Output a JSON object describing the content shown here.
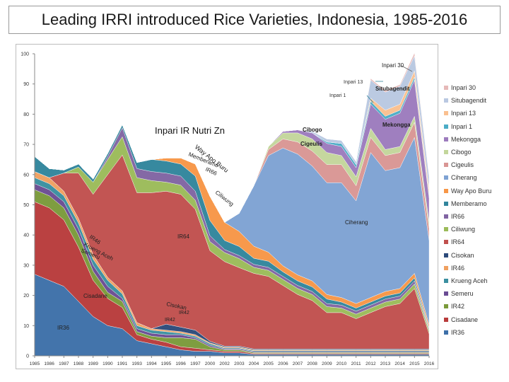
{
  "chart_data": {
    "type": "area",
    "title": "Leading IRRI introduced Rice Varieties, Indonesia, 1985-2016",
    "subtitle": "Inpari IR Nutri Zn",
    "stacked": true,
    "ylim": [
      0,
      100
    ],
    "yticks": [
      0,
      10,
      20,
      30,
      40,
      50,
      60,
      70,
      80,
      90,
      100
    ],
    "x": [
      "1985",
      "1986",
      "1987",
      "1988",
      "1989",
      "1990",
      "1991",
      "1993",
      "1994",
      "1995",
      "1996",
      "1997",
      "2000",
      "2002",
      "2003",
      "2004",
      "2005",
      "2006",
      "2007",
      "2008",
      "2009",
      "2010",
      "2011",
      "2012",
      "2013",
      "2014",
      "2015",
      "2016"
    ],
    "series": [
      {
        "name": "IR36",
        "color": "#3d6fa8",
        "values": [
          27,
          25,
          23,
          18,
          13,
          10,
          9,
          5,
          4,
          3,
          2,
          1.5,
          1.5,
          1,
          1,
          0.5,
          0.5,
          0.5,
          0.5,
          0.5,
          0.5,
          0.5,
          0.5,
          0.5,
          0.5,
          0.5,
          0.5,
          0.5
        ]
      },
      {
        "name": "Cisadane",
        "color": "#b83b3b",
        "values": [
          24,
          24,
          22,
          18,
          12,
          9,
          7,
          2,
          1.5,
          1.5,
          1,
          1,
          0.5,
          0.5,
          0.5,
          0.3,
          0.3,
          0.3,
          0.3,
          0.3,
          0.3,
          0.3,
          0.3,
          0.3,
          0.3,
          0.3,
          0.3,
          0.3
        ]
      },
      {
        "name": "IR42",
        "color": "#7a9a3a",
        "values": [
          4,
          4,
          4,
          4,
          3,
          2,
          2,
          1,
          1,
          1.5,
          3,
          3,
          1,
          0.5,
          0.5,
          0.3,
          0.3,
          0.3,
          0.3,
          0.3,
          0.3,
          0.3,
          0.3,
          0.3,
          0.3,
          0.3,
          0.3,
          0.3
        ]
      },
      {
        "name": "Semeru",
        "color": "#6a4c93",
        "values": [
          2,
          2,
          2,
          2,
          2,
          2,
          1,
          1,
          1,
          1,
          1,
          0.5,
          0.5,
          0.3,
          0.3,
          0.3,
          0.3,
          0.3,
          0.3,
          0.3,
          0.3,
          0.3,
          0.3,
          0.3,
          0.3,
          0.3,
          0.3,
          0.3
        ]
      },
      {
        "name": "Krueng Aceh",
        "color": "#3a8fa0",
        "values": [
          2,
          2,
          2,
          2,
          2,
          2,
          1.5,
          1,
          1,
          1,
          0.5,
          0.5,
          0.5,
          0.3,
          0.3,
          0.3,
          0.3,
          0.3,
          0.3,
          0.3,
          0.3,
          0.3,
          0.3,
          0.3,
          0.3,
          0.3,
          0.3,
          0.3
        ]
      },
      {
        "name": "IR46",
        "color": "#f0a060",
        "values": [
          2,
          2,
          1.5,
          1.5,
          1.5,
          1,
          1,
          1,
          0.5,
          0.5,
          0.5,
          0.5,
          0.3,
          0.3,
          0.3,
          0.3,
          0.3,
          0.3,
          0.3,
          0.3,
          0.3,
          0.3,
          0.3,
          0.3,
          0.3,
          0.3,
          0.3,
          0.3
        ]
      },
      {
        "name": "Cisokan",
        "color": "#2c4a7a",
        "values": [
          0,
          0,
          0,
          0,
          0,
          0,
          0,
          0,
          0,
          2,
          1.5,
          1.5,
          0.5,
          0.3,
          0.3,
          0.3,
          0.3,
          0.3,
          0.3,
          0.3,
          0.3,
          0.3,
          0.3,
          0.3,
          0.3,
          0.3,
          0.3,
          0.3
        ]
      },
      {
        "name": "IR64",
        "color": "#c0504d",
        "values": [
          0,
          0,
          6,
          15,
          20,
          34,
          45,
          43,
          45,
          44,
          44,
          40,
          30,
          28,
          26,
          25,
          24,
          21,
          18,
          16,
          12,
          12,
          10,
          12,
          14,
          15,
          20,
          5
        ]
      },
      {
        "name": "Ciliwung",
        "color": "#9bbb59",
        "values": [
          0,
          0,
          0,
          2,
          4,
          5,
          6,
          5,
          4,
          3,
          3,
          3,
          3,
          3,
          3,
          2,
          2,
          2,
          2,
          2,
          2,
          1.5,
          1.5,
          1.5,
          1.5,
          1.5,
          1.5,
          1
        ]
      },
      {
        "name": "IR66",
        "color": "#8064a2",
        "values": [
          0,
          0,
          0,
          0,
          0,
          1,
          3,
          3,
          3,
          3,
          3,
          3,
          2,
          1,
          1,
          1,
          1,
          1,
          1,
          1,
          1,
          1,
          1,
          1,
          1,
          1,
          1,
          0.5
        ]
      },
      {
        "name": "Memberamo",
        "color": "#31859c",
        "values": [
          5,
          3,
          1,
          1,
          1,
          1,
          1,
          2,
          4,
          4,
          4,
          5,
          5,
          3,
          3,
          2,
          2,
          1.5,
          1.5,
          1.5,
          1.5,
          1,
          1,
          1,
          1,
          1,
          1,
          0.5
        ]
      },
      {
        "name": "Way Apo Buru",
        "color": "#f79646",
        "values": [
          0,
          0,
          0,
          0,
          0,
          0,
          0,
          0,
          0,
          1,
          2,
          4,
          8,
          6,
          5,
          4,
          3,
          2,
          2,
          2,
          1.5,
          1.5,
          1.5,
          1.5,
          1.5,
          1.5,
          1.5,
          1
        ]
      },
      {
        "name": "Ciherang",
        "color": "#7ea2d3",
        "values": [
          0,
          0,
          0,
          0,
          0,
          0,
          0,
          0,
          0,
          0,
          0,
          0,
          0,
          0,
          6,
          20,
          32,
          39,
          40,
          38,
          37,
          38,
          34,
          48,
          40,
          40,
          45,
          28
        ]
      },
      {
        "name": "Cigeulis",
        "color": "#d99694",
        "values": [
          0,
          0,
          0,
          0,
          0,
          0,
          0,
          0,
          0,
          0,
          0,
          0,
          0,
          0,
          0,
          0,
          2,
          3,
          4,
          5,
          6,
          6,
          5,
          5,
          5,
          5,
          5,
          4
        ]
      },
      {
        "name": "Cibogo",
        "color": "#c3d69b",
        "values": [
          0,
          0,
          0,
          0,
          0,
          0,
          0,
          0,
          0,
          0,
          0,
          0,
          0,
          0,
          0,
          0,
          1,
          2,
          3,
          4,
          4,
          3,
          3,
          3,
          2,
          2,
          2,
          2
        ]
      },
      {
        "name": "Mekongga",
        "color": "#9c7bbd",
        "values": [
          0,
          0,
          0,
          0,
          0,
          0,
          0,
          0,
          0,
          0,
          0,
          0,
          0,
          0,
          0,
          0,
          0,
          0.5,
          1,
          2,
          3,
          3,
          3,
          8,
          10,
          11,
          12,
          8
        ]
      },
      {
        "name": "Inpari 1",
        "color": "#4bacc6",
        "values": [
          0,
          0,
          0,
          0,
          0,
          0,
          0,
          0,
          0,
          0,
          0,
          0,
          0,
          0,
          0,
          0,
          0,
          0,
          0,
          0,
          0.5,
          1,
          1,
          1,
          1,
          1,
          1,
          1
        ]
      },
      {
        "name": "Inpari 13",
        "color": "#fac090",
        "values": [
          0,
          0,
          0,
          0,
          0,
          0,
          0,
          0,
          0,
          0,
          0,
          0,
          0,
          0,
          0,
          0,
          0,
          0,
          0,
          0,
          0,
          0,
          0,
          1,
          2,
          2,
          2,
          2
        ]
      },
      {
        "name": "Situbagendit",
        "color": "#b9c8e1",
        "values": [
          0,
          0,
          0,
          0,
          0,
          0,
          0,
          0,
          0,
          0,
          0,
          0,
          0,
          0,
          0,
          0,
          0,
          0,
          0,
          0.5,
          1,
          1,
          1,
          6,
          6,
          6,
          5,
          4
        ]
      },
      {
        "name": "Inpari 30",
        "color": "#e6b9b8",
        "values": [
          0,
          0,
          0,
          0,
          0,
          0,
          0,
          0,
          0,
          0,
          0,
          0,
          0,
          0,
          0,
          0,
          0,
          0,
          0,
          0,
          0,
          0,
          0,
          0.5,
          0.5,
          0.5,
          1,
          0.5
        ]
      }
    ],
    "legend_order": [
      "Inpari 30",
      "Situbagendit",
      "Inpari 13",
      "Inpari 1",
      "Mekongga",
      "Cibogo",
      "Cigeulis",
      "Ciherang",
      "Way Apo Buru",
      "Memberamo",
      "IR66",
      "Ciliwung",
      "IR64",
      "Cisokan",
      "IR46",
      "Krueng Aceh",
      "Semeru",
      "IR42",
      "Cisadane",
      "IR36"
    ],
    "annotations": [
      {
        "text": "Inpari 30",
        "series": "Inpari 30"
      },
      {
        "text": "Inpari 13",
        "series": "Inpari 13"
      },
      {
        "text": "Situbagendit",
        "series": "Situbagendit"
      },
      {
        "text": "Inpari 1",
        "series": "Inpari 1"
      },
      {
        "text": "Mekongga",
        "series": "Mekongga"
      },
      {
        "text": "Cibogo",
        "series": "Cibogo"
      },
      {
        "text": "Cigeulis",
        "series": "Cigeulis"
      },
      {
        "text": "Ciherang",
        "series": "Ciherang"
      },
      {
        "text": "Way Apo Buru",
        "series": "Way Apo Buru"
      },
      {
        "text": "Memberamo",
        "series": "Memberamo"
      },
      {
        "text": "IR66",
        "series": "IR66"
      },
      {
        "text": "Ciliwung",
        "series": "Ciliwung"
      },
      {
        "text": "IR64",
        "series": "IR64"
      },
      {
        "text": "IR46",
        "series": "IR46"
      },
      {
        "text": "Krueng Aceh",
        "series": "Krueng Aceh"
      },
      {
        "text": "Semeru",
        "series": "Semeru"
      },
      {
        "text": "Cisokan",
        "series": "Cisokan"
      },
      {
        "text": "IR42",
        "series": "IR42"
      },
      {
        "text": "IR42",
        "series": "IR42"
      },
      {
        "text": "Cisadane",
        "series": "Cisadane"
      },
      {
        "text": "IR36",
        "series": "IR36"
      }
    ],
    "legend_position": "right",
    "grid": false
  }
}
